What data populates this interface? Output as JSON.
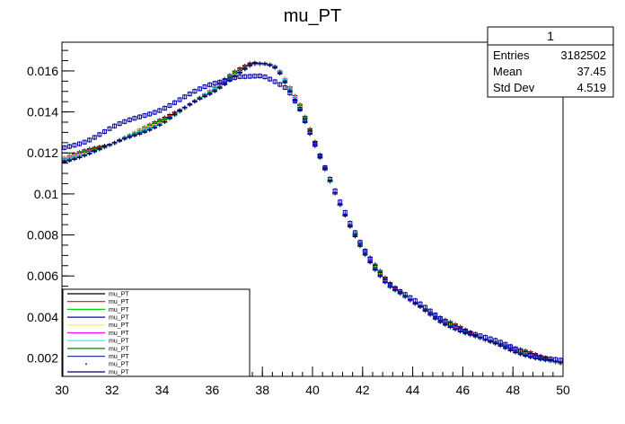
{
  "chart_data": {
    "type": "line",
    "title": "mu_PT",
    "xlabel": "",
    "ylabel": "",
    "xlim": [
      30,
      50
    ],
    "ylim": [
      0.0011,
      0.0174
    ],
    "x_ticks": [
      "30",
      "32",
      "34",
      "36",
      "38",
      "40",
      "42",
      "44",
      "46",
      "48",
      "50"
    ],
    "y_ticks": [
      "0.002",
      "0.004",
      "0.006",
      "0.008",
      "0.01",
      "0.012",
      "0.014",
      "0.016"
    ],
    "grid": false,
    "stats_box": {
      "title": "1",
      "rows": [
        {
          "label": "Entries",
          "value": "3182502"
        },
        {
          "label": "Mean",
          "value": "37.45"
        },
        {
          "label": "Std Dev",
          "value": "4.519"
        }
      ]
    },
    "legend": {
      "placement": "bottom-left",
      "entries": [
        {
          "label": "mu_PT",
          "color": "#000000",
          "style": "line"
        },
        {
          "label": "mu_PT",
          "color": "#ff0000",
          "style": "line"
        },
        {
          "label": "mu_PT",
          "color": "#00cc00",
          "style": "line"
        },
        {
          "label": "mu_PT",
          "color": "#0000cc",
          "style": "line"
        },
        {
          "label": "mu_PT",
          "color": "#ffff00",
          "style": "line"
        },
        {
          "label": "mu_PT",
          "color": "#ff00ff",
          "style": "line"
        },
        {
          "label": "mu_PT",
          "color": "#00ffff",
          "style": "line"
        },
        {
          "label": "mu_PT",
          "color": "#008800",
          "style": "line"
        },
        {
          "label": "mu_PT",
          "color": "#3333aa",
          "style": "line"
        },
        {
          "label": "mu_PT",
          "color": "#000000",
          "style": "dot"
        },
        {
          "label": "mu_PT",
          "color": "#000066",
          "style": "line"
        }
      ]
    },
    "bins": {
      "start": 30,
      "end": 50,
      "count": 100
    },
    "series": [
      {
        "name": "mu_PT",
        "colors": [
          "#000000",
          "#ff0000",
          "#00cc00",
          "#0000cc",
          "#ffff00",
          "#ff00ff",
          "#00ffff",
          "#008800",
          "#3333aa",
          "#000066"
        ],
        "x": [
          30,
          32,
          34,
          36,
          37,
          37.6,
          38.2,
          38.6,
          39,
          39.5,
          40,
          40.5,
          41,
          41.5,
          42,
          42.5,
          43,
          44,
          45,
          46,
          47,
          48,
          49,
          50
        ],
        "y": [
          0.0117,
          0.0125,
          0.0136,
          0.0151,
          0.016,
          0.01645,
          0.0164,
          0.0162,
          0.0154,
          0.0143,
          0.0128,
          0.0113,
          0.0098,
          0.0085,
          0.0074,
          0.0065,
          0.0057,
          0.0048,
          0.004,
          0.0034,
          0.0029,
          0.0025,
          0.0021,
          0.0018
        ]
      },
      {
        "name": "mu_PT",
        "colors": [
          "#0000aa"
        ],
        "marker": "open-square",
        "x": [
          30,
          31,
          32,
          33,
          34,
          35,
          36,
          37,
          37.5,
          38,
          38.5,
          39,
          39.5,
          40,
          40.5,
          41,
          41.5,
          42,
          42.5,
          43,
          44,
          45,
          46,
          47,
          48,
          49,
          50
        ],
        "y": [
          0.0122,
          0.01265,
          0.0132,
          0.0137,
          0.0142,
          0.01475,
          0.01535,
          0.0158,
          0.01575,
          0.0157,
          0.0154,
          0.0151,
          0.0142,
          0.0128,
          0.0113,
          0.0098,
          0.0085,
          0.0074,
          0.0065,
          0.0057,
          0.0048,
          0.004,
          0.0034,
          0.0029,
          0.0025,
          0.0021,
          0.0018
        ]
      }
    ]
  }
}
